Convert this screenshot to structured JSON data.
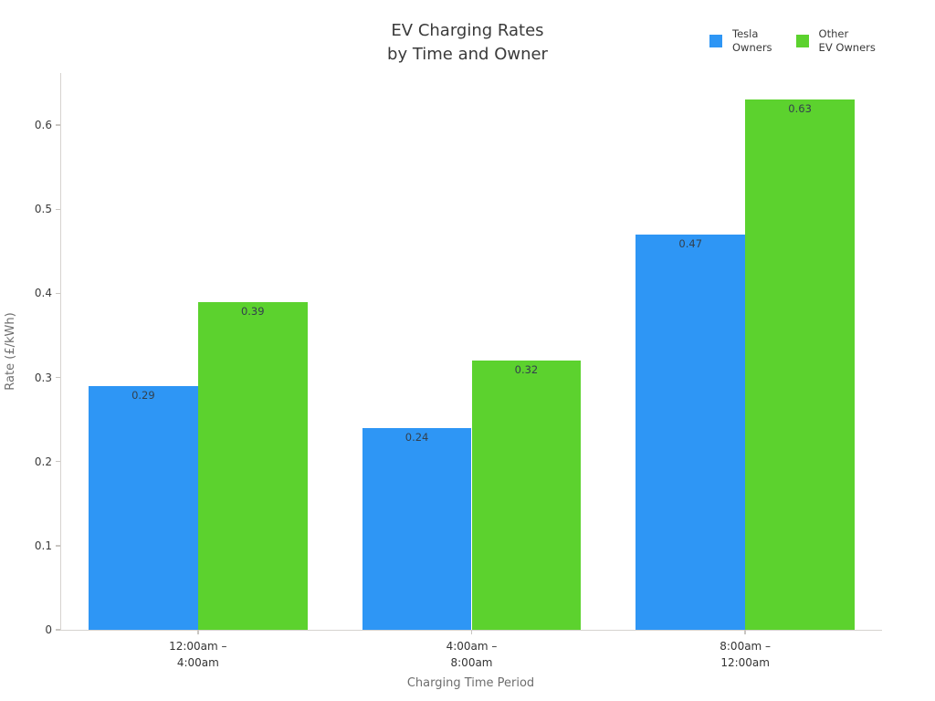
{
  "chart_data": {
    "type": "bar",
    "title": "EV Charging Rates\nby Time and Owner",
    "xlabel": "Charging Time Period",
    "ylabel": "Rate (£/kWh)",
    "categories": [
      "12:00am –\n4:00am",
      "4:00am –\n8:00am",
      "8:00am –\n12:00am"
    ],
    "series": [
      {
        "name": "Tesla\nOwners",
        "color": "#2E96F5",
        "values": [
          0.29,
          0.24,
          0.47
        ]
      },
      {
        "name": "Other\nEV Owners",
        "color": "#5CD22E",
        "values": [
          0.39,
          0.32,
          0.63
        ]
      }
    ],
    "bar_value_labels": [
      [
        "0.29",
        "0.24",
        "0.47"
      ],
      [
        "0.39",
        "0.32",
        "0.63"
      ]
    ],
    "yticks": [
      0,
      0.1,
      0.2,
      0.3,
      0.4,
      0.5,
      0.6
    ],
    "ytick_labels": [
      "0",
      "0.1",
      "0.2",
      "0.3",
      "0.4",
      "0.5",
      "0.6"
    ],
    "ylim": [
      0,
      0.662
    ],
    "grid": false,
    "legend_position": "top-right",
    "value_label_position": "inside-top",
    "bar_group_width_fraction": 0.8
  },
  "colors": {
    "tesla_blue": "#2E96F5",
    "other_green": "#5CD22E",
    "axis_line": "#D6D3CF",
    "tick_mark": "#C9C6C2",
    "tick_label": "#3B3B3B",
    "axis_title": "#6E6E6E",
    "title_text": "#3A3A3A",
    "bar_value_label": "#33404D",
    "background": "#FFFFFF"
  }
}
